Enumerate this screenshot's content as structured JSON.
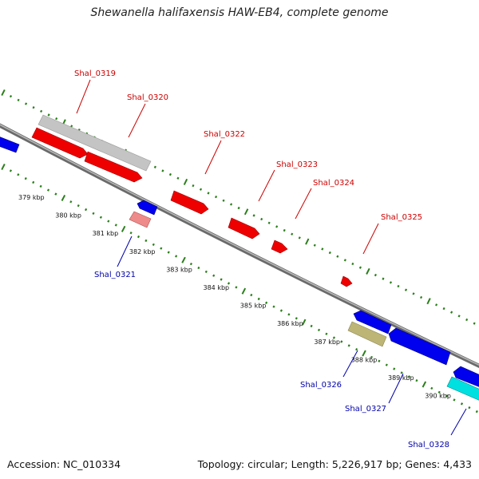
{
  "title": "Shewanella halifaxensis HAW-EB4, complete genome",
  "accession": "Accession: NC_010334",
  "topology": "Topology: circular; Length: 5,226,917 bp; Genes: 4,433",
  "colors": {
    "forward_gene": "#ff0000",
    "reverse_gene": "#0000ee",
    "pseudo_gene": "#c8c8c8",
    "pink_gene": "#ee8888",
    "olive_gene": "#bdb576",
    "cyan_gene": "#00e5e5",
    "backbone": "#888888",
    "tick_track": "#2a7f1a",
    "label_forward": "#cc0000",
    "label_reverse": "#0000aa"
  },
  "tick_labels": [
    "379 kbp",
    "380 kbp",
    "381 kbp",
    "382 kbp",
    "383 kbp",
    "384 kbp",
    "385 kbp",
    "386 kbp",
    "387 kbp",
    "388 kbp",
    "389 kbp",
    "390 kbp"
  ],
  "genes_forward": [
    {
      "label": "Shal_0319",
      "color": "pseudo_gene"
    },
    {
      "label": "Shal_0320",
      "color": "forward_gene"
    },
    {
      "label": "Shal_0322",
      "color": "forward_gene"
    },
    {
      "label": "Shal_0323",
      "color": "forward_gene"
    },
    {
      "label": "Shal_0324",
      "color": "forward_gene"
    },
    {
      "label": "Shal_0325",
      "color": "forward_gene"
    }
  ],
  "genes_reverse": [
    {
      "label": "Shal_0321",
      "color": "reverse_gene"
    },
    {
      "label": "Shal_0326",
      "color": "olive_gene"
    },
    {
      "label": "Shal_0327",
      "color": "reverse_gene"
    },
    {
      "label": "Shal_0328",
      "color": "cyan_gene"
    }
  ]
}
